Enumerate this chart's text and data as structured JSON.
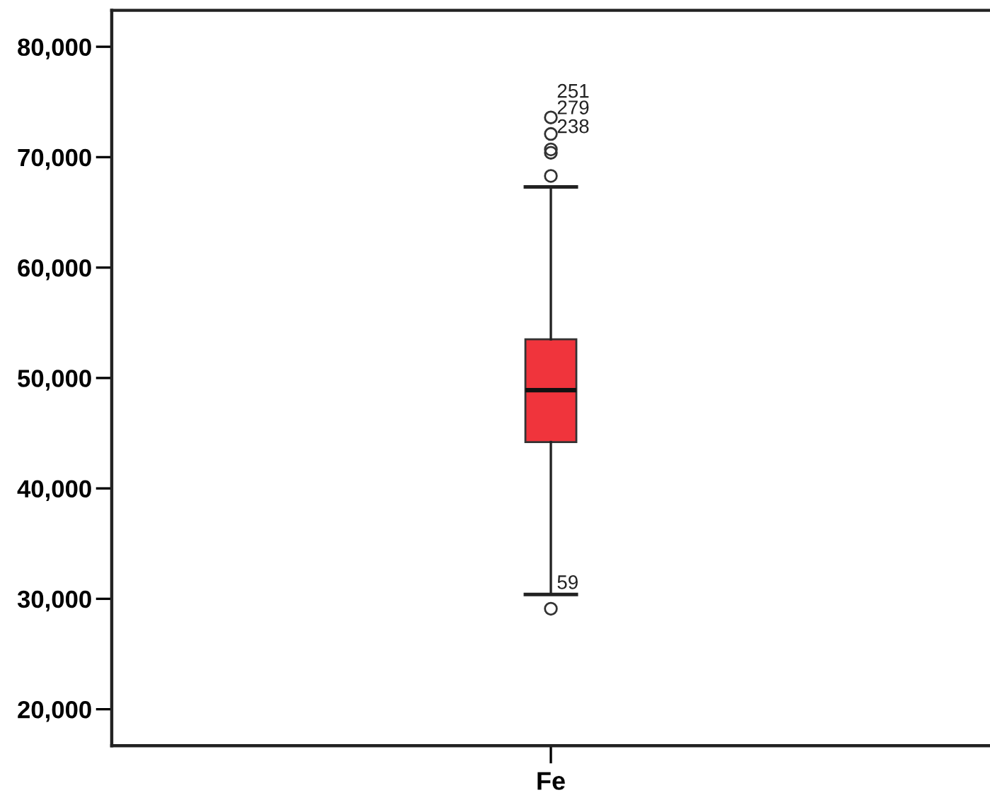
{
  "chart_data": {
    "type": "box",
    "categories": [
      "Fe"
    ],
    "boxes": [
      {
        "low": 30400,
        "q1": 44200,
        "median": 48900,
        "q3": 53500,
        "high": 67300,
        "outliers": [
          73600,
          72100,
          70400,
          29100,
          70700,
          68300
        ]
      }
    ],
    "color": "#f0343c",
    "ylim": [
      16700,
      83300
    ],
    "yticks": [
      {
        "value": 20000,
        "label": "20,000"
      },
      {
        "value": 30000,
        "label": "30,000"
      },
      {
        "value": 40000,
        "label": "40,000"
      },
      {
        "value": 50000,
        "label": "50,000"
      },
      {
        "value": 60000,
        "label": "60,000"
      },
      {
        "value": 70000,
        "label": "70,000"
      },
      {
        "value": 80000,
        "label": "80,000"
      }
    ],
    "annotations": [
      "251",
      "279",
      "238",
      "59"
    ]
  }
}
